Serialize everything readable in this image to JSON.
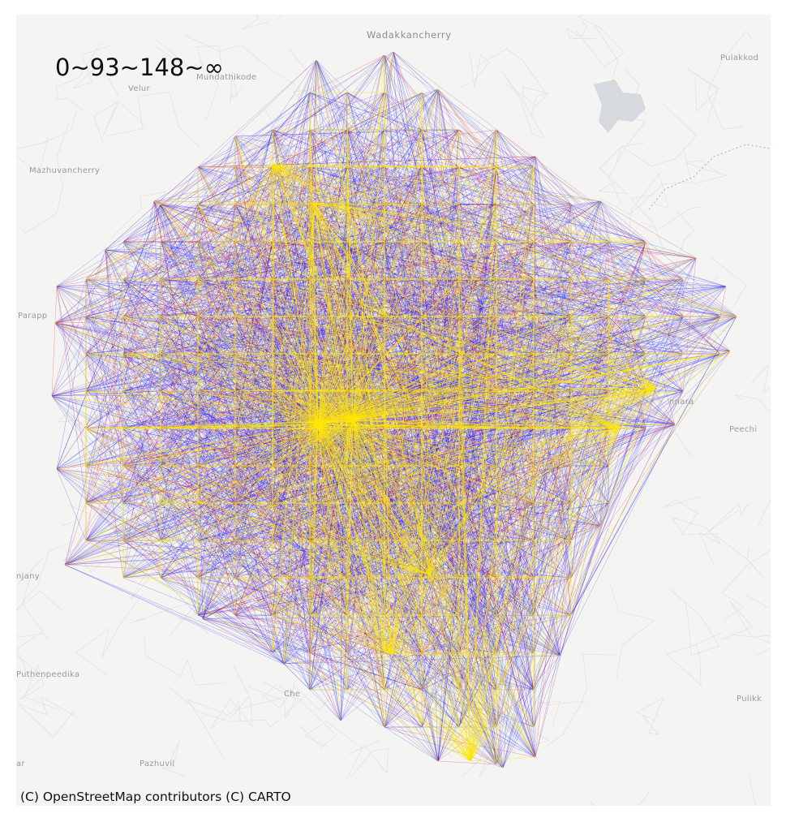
{
  "map": {
    "legend_title": "0~93~148~∞",
    "attribution": "(C) OpenStreetMap contributors (C) CARTO",
    "places": [
      {
        "key": "wadakkancherry",
        "text": "Wadakkancherry"
      },
      {
        "key": "pulakkode",
        "text": "Pulakkod"
      },
      {
        "key": "velur",
        "text": "Velur"
      },
      {
        "key": "mundathikode",
        "text": "Mundathikode"
      },
      {
        "key": "mazhuvancherry",
        "text": "Mazhuvancherry"
      },
      {
        "key": "parapp",
        "text": "Parapp"
      },
      {
        "key": "peechi",
        "text": "Peechi"
      },
      {
        "key": "pannara",
        "text": "nnara"
      },
      {
        "key": "anjany",
        "text": "njany"
      },
      {
        "key": "puthenpeedika",
        "text": "Puthenpeedika"
      },
      {
        "key": "pulikk",
        "text": "Pulikk"
      },
      {
        "key": "pazhuvil",
        "text": "Pazhuvil"
      },
      {
        "key": "ar",
        "text": "ar"
      },
      {
        "key": "che",
        "text": "Che"
      }
    ],
    "colors": {
      "tier_low": "#ffe600",
      "tier_mid": "#e0001a",
      "tier_high": "#1414ff",
      "basemap_bg": "#f4f4f2",
      "water": "#d6dadf",
      "road": "#e3e3e3"
    },
    "flow_tiers": [
      "0–93",
      "93–148",
      "148–∞"
    ]
  }
}
